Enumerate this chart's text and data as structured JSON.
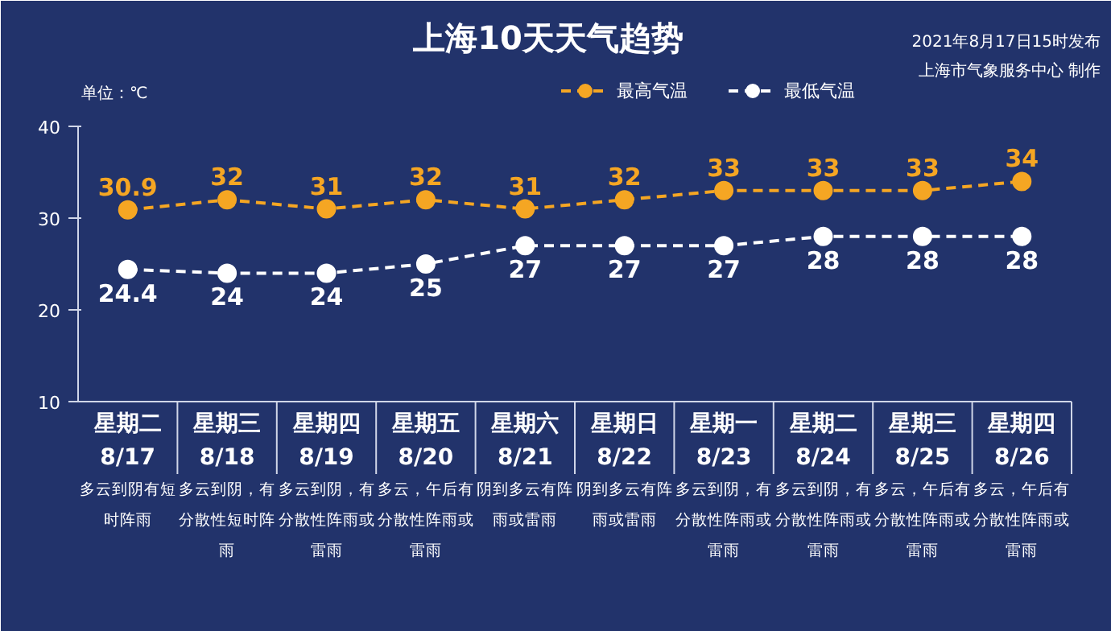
{
  "chart_data": {
    "type": "line",
    "title": "上海10天天气趋势",
    "ylabel": "单位：℃",
    "categories": [
      "星期二\n8/17",
      "星期三\n8/18",
      "星期四\n8/19",
      "星期五\n8/20",
      "星期六\n8/21",
      "星期日\n8/22",
      "星期一\n8/23",
      "星期二\n8/24",
      "星期三\n8/25",
      "星期四\n8/26"
    ],
    "series": [
      {
        "name": "最高气温",
        "color": "#f5a623",
        "values": [
          30.9,
          32,
          31,
          32,
          31,
          32,
          33,
          33,
          33,
          34
        ]
      },
      {
        "name": "最低气温",
        "color": "#ffffff",
        "values": [
          24.4,
          24,
          24,
          25,
          27,
          27,
          27,
          28,
          28,
          28
        ]
      }
    ],
    "ylim": [
      10,
      40
    ],
    "yticks": [
      10,
      20,
      30,
      40
    ],
    "grid": false,
    "legend": "top right",
    "marker": "circle",
    "line_style": "dashed",
    "data_labels": true,
    "annotations": [
      "多云到阴有短时阵雨",
      "多云到阴，有分散性短时阵雨",
      "多云到阴，有分散性阵雨或雷雨",
      "多云，午后有分散性阵雨或雷雨",
      "阴到多云有阵雨或雷雨",
      "阴到多云有阵雨或雷雨",
      "多云到阴，有分散性阵雨或雷雨",
      "多云到阴，有分散性阵雨或雷雨",
      "多云，午后有分散性阵雨或雷雨",
      "多云，午后有分散性阵雨或雷雨",
      "2021年8月17日15时发布",
      "上海市气象服务中心 制作"
    ]
  }
}
